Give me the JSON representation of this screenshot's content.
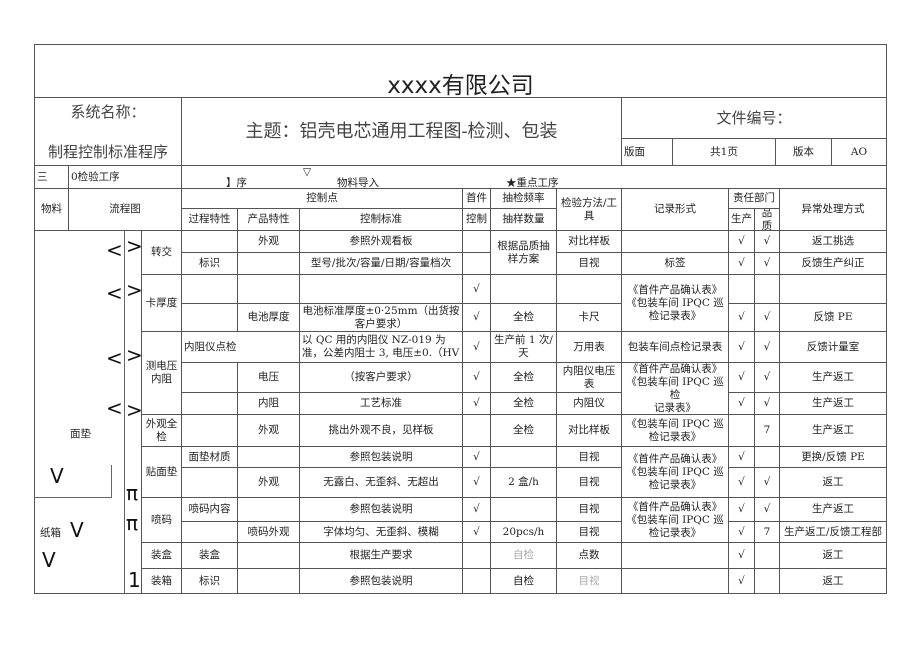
{
  "header": {
    "title": "xxxx有限公司",
    "system_label": "系统名称：",
    "system_name": "制程控制标准程序",
    "subject_label": "主题：",
    "subject": "铝壳电芯通用工程图-检测、包装",
    "doc_no_label": "文件编号：",
    "page_label": "版面",
    "page_value": "共1页",
    "version_label": "版本",
    "version_value": "AO"
  },
  "legend": {
    "section": "三",
    "section_name": "0检验工序",
    "triangle": "▽",
    "process": "】序",
    "material_import": "物料导入",
    "key_process": "★重点工序"
  },
  "columns": {
    "material": "物料",
    "flow": "流程图",
    "control_point": "控制点",
    "process_char": "过程特性",
    "product_char": "产品特性",
    "control_std": "控制标准",
    "first_piece_1": "首件",
    "first_piece_2": "控制",
    "freq_1": "抽检频率",
    "freq_2": "抽样数量",
    "method": "检验方法/工具",
    "record": "记录形式",
    "dept": "责任部门",
    "dept_prod": "生产",
    "dept_qual": "品质",
    "action": "异常处理方式"
  },
  "flow": {
    "mat_mianzhen": "面垫",
    "mat_zhixiang": "纸箱",
    "symbols": [
      "<",
      ">",
      "<",
      ">",
      "<",
      ">",
      "<",
      ">",
      "π",
      "π",
      "1",
      "V",
      "V",
      "V"
    ]
  },
  "rows": [
    {
      "name": "转交",
      "process": "",
      "product": "外观",
      "standard": "参照外观看板",
      "first": "",
      "freq": "根据品质抽样方案",
      "method": "对比样板",
      "record": "",
      "prod": "√",
      "qual": "√",
      "action": "返工挑选"
    },
    {
      "process": "标识",
      "product": "",
      "standard": "型号/批次/容量/日期/容量档次",
      "first": "",
      "method": "目视",
      "record": "标签",
      "prod": "√",
      "qual": "√",
      "action": "反馈生产纠正"
    },
    {
      "name": "卡厚度",
      "process": "",
      "product": "",
      "standard": "",
      "first": "√",
      "freq": "",
      "method": "",
      "record": "《首件产品确认表》\n《包装车间 IPQC 巡检记录表》",
      "prod": "",
      "qual": "",
      "action": ""
    },
    {
      "process": "",
      "product": "电池厚度",
      "standard": "电池标准厚度±0·25mm（出货按客户要求）",
      "first": "√",
      "freq": "全检",
      "method": "卡尺",
      "prod": "√",
      "qual": "√",
      "action": "反馈 PE"
    },
    {
      "name": "测电压\n内阻",
      "process": "内阻仪点检",
      "standard": "以 QC 用的内阻仪 NZ-019 为准，公差内阻士 3, 电压±0.（HV",
      "first": "√",
      "freq": "生产前 1 次/天",
      "method": "万用表",
      "record": "包装车间点检记录表",
      "prod": "√",
      "qual": "√",
      "action": "反馈计量室"
    },
    {
      "process": "",
      "product": "电压",
      "standard": "（按客户要求）",
      "first": "√",
      "freq": "全检",
      "method": "内阻仪电压表",
      "record": "《首件产品确认表》\n《包装车间 IPQC 巡检\n记录表》",
      "prod": "√",
      "qual": "√",
      "action": "生产返工"
    },
    {
      "process": "",
      "product": "内阻",
      "standard": "工艺标准",
      "first": "√",
      "freq": "全检",
      "method": "内阻仪",
      "prod": "√",
      "qual": "√",
      "action": "生产返工"
    },
    {
      "name": "外观全检",
      "process": "",
      "product": "外观",
      "standard": "挑出外观不良，见样板",
      "first": "",
      "freq": "全检",
      "method": "对比样板",
      "record": "《包装车间 IPQC 巡检记录表》",
      "prod": "",
      "qual": "7",
      "action": "生产返工"
    },
    {
      "name": "贴面垫",
      "process": "面垫材质",
      "product": "",
      "standard": "参照包装说明",
      "first": "√",
      "freq": "",
      "method": "目视",
      "record": "《首件产品确认表》\n《包装车间 IPQC 巡检记录表》",
      "prod": "√",
      "qual": "",
      "action": "更换/反馈 PE"
    },
    {
      "process": "",
      "product": "外观",
      "standard": "无露白、无歪斜、无超出",
      "first": "√",
      "freq": "2 盒/h",
      "method": "目视",
      "prod": "√",
      "qual": "√",
      "action": "返工"
    },
    {
      "name": "喷码",
      "process": "喷码内容",
      "product": "",
      "standard": "参照包装说明",
      "first": "√",
      "freq": "",
      "method": "目视",
      "record": "《首件产品确认表》\n《包装车间 IPQC 巡检记录表》",
      "prod": "√",
      "qual": "√",
      "action": "生产返工"
    },
    {
      "process": "",
      "product": "喷码外观",
      "standard": "字体均匀、无歪斜、模糊",
      "first": "√",
      "freq": "20pcs/h",
      "method": "目视",
      "prod": "√",
      "qual": "7",
      "action": "生产返工/反馈工程部"
    },
    {
      "name": "装盒",
      "process": "装盒",
      "product": "",
      "standard": "根据生产要求",
      "first": "",
      "freq": "自检",
      "method": "点数",
      "record": "",
      "prod": "√",
      "qual": "",
      "action": "返工"
    },
    {
      "name": "装箱",
      "process": "标识",
      "product": "",
      "standard": "参照包装说明",
      "first": "",
      "freq": "自检",
      "method": "目视",
      "record": "",
      "prod": "√",
      "qual": "",
      "action": "返工"
    }
  ]
}
